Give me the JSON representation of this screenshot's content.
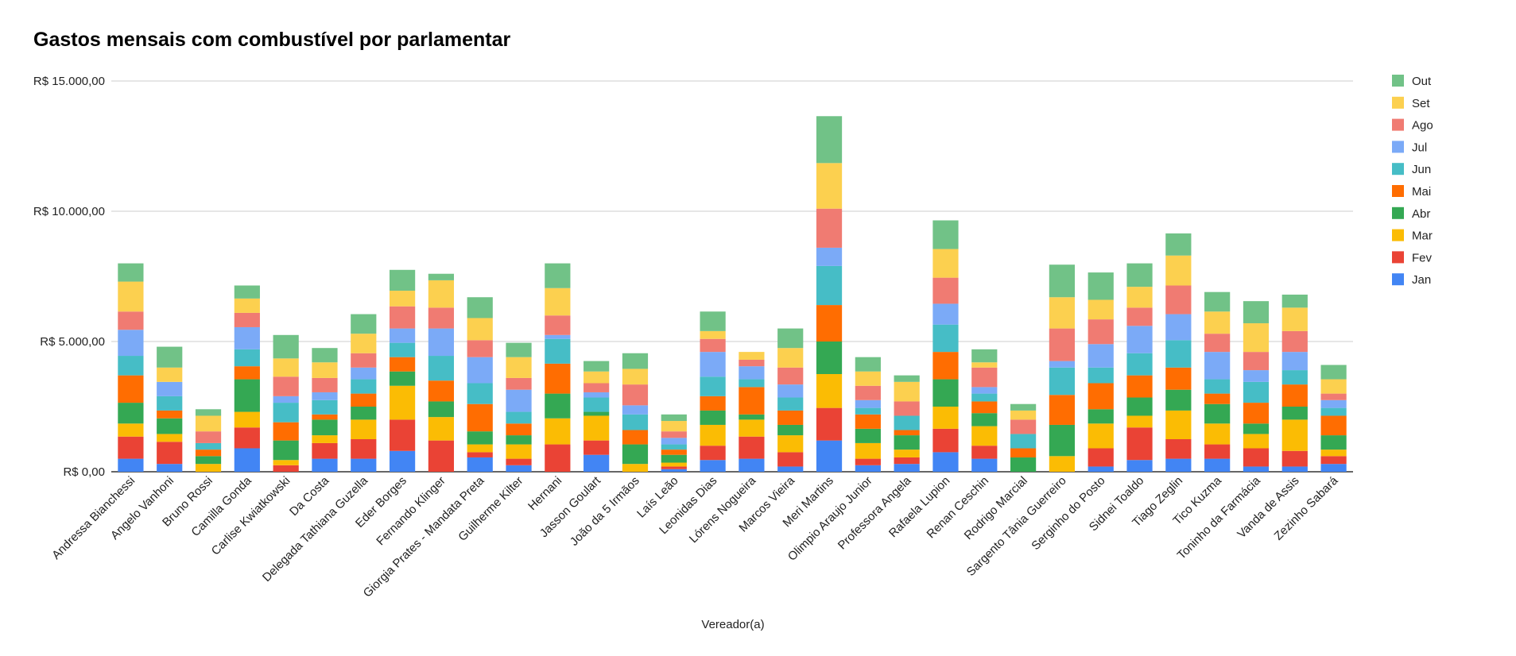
{
  "chart_data": {
    "type": "bar",
    "stacked": true,
    "title": "Gastos mensais com combustível por parlamentar",
    "xlabel": "Vereador(a)",
    "ylabel": "",
    "ylim": [
      0,
      15000
    ],
    "yticks": [
      {
        "value": 0,
        "label": "R$ 0,00"
      },
      {
        "value": 5000,
        "label": "R$ 5.000,00"
      },
      {
        "value": 10000,
        "label": "R$ 10.000,00"
      },
      {
        "value": 15000,
        "label": "R$ 15.000,00"
      }
    ],
    "grid": true,
    "legend_position": "right",
    "categories": [
      "Andressa Bianchessi",
      "Angelo Vanhoni",
      "Bruno Rossi",
      "Camilla Gonda",
      "Carlise Kwiatkowski",
      "Da Costa",
      "Delegada Tathiana Guzella",
      "Eder Borges",
      "Fernando Klinger",
      "Giorgia Prates - Mandata Preta",
      "Guilherme Kilter",
      "Hernani",
      "Jasson Goulart",
      "João da 5 Irmãos",
      "Laís Leão",
      "Leonidas Dias",
      "Lórens Nogueira",
      "Marcos Vieira",
      "Meri Martins",
      "Olimpio Araujo Junior",
      "Professora Angela",
      "Rafaela Lupion",
      "Renan Ceschin",
      "Rodrigo Marcial",
      "Sargento Tânia Guerreiro",
      "Serginho do Posto",
      "Sidnei Toaldo",
      "Tiago Zeglin",
      "Tico Kuzma",
      "Toninho da Farmácia",
      "Vanda de Assis",
      "Zezinho Sabará"
    ],
    "series": [
      {
        "name": "Jan",
        "color": "#4285F4",
        "values": [
          500,
          300,
          0,
          900,
          0,
          500,
          500,
          800,
          0,
          550,
          250,
          0,
          650,
          0,
          100,
          450,
          500,
          200,
          1200,
          250,
          300,
          750,
          500,
          0,
          0,
          200,
          450,
          500,
          500,
          200,
          200,
          300
        ]
      },
      {
        "name": "Fev",
        "color": "#EA4335",
        "values": [
          850,
          850,
          0,
          800,
          250,
          600,
          750,
          1200,
          1200,
          200,
          250,
          1050,
          550,
          0,
          100,
          550,
          850,
          550,
          1250,
          250,
          250,
          900,
          500,
          0,
          0,
          700,
          1250,
          750,
          550,
          700,
          600,
          300
        ]
      },
      {
        "name": "Mar",
        "color": "#FBBC04",
        "values": [
          500,
          300,
          300,
          600,
          200,
          300,
          750,
          1300,
          900,
          300,
          550,
          1000,
          950,
          300,
          150,
          800,
          650,
          650,
          1300,
          600,
          300,
          850,
          750,
          0,
          600,
          950,
          450,
          1100,
          800,
          550,
          1200,
          250
        ]
      },
      {
        "name": "Abr",
        "color": "#34A853",
        "values": [
          800,
          600,
          300,
          1250,
          750,
          600,
          500,
          550,
          600,
          500,
          350,
          950,
          150,
          750,
          300,
          550,
          200,
          400,
          1250,
          550,
          550,
          1050,
          500,
          550,
          1200,
          550,
          700,
          800,
          750,
          400,
          500,
          550
        ]
      },
      {
        "name": "Mai",
        "color": "#FF6D01",
        "values": [
          1050,
          300,
          250,
          500,
          700,
          200,
          500,
          550,
          800,
          1050,
          450,
          1150,
          0,
          550,
          200,
          550,
          1050,
          550,
          1400,
          550,
          200,
          1050,
          450,
          350,
          1150,
          1000,
          850,
          850,
          400,
          800,
          850,
          750
        ]
      },
      {
        "name": "Jun",
        "color": "#46BDC6",
        "values": [
          750,
          550,
          250,
          650,
          750,
          550,
          550,
          550,
          950,
          800,
          450,
          950,
          550,
          600,
          200,
          750,
          300,
          500,
          1500,
          250,
          550,
          1050,
          300,
          550,
          1050,
          600,
          850,
          1050,
          550,
          800,
          550,
          300
        ]
      },
      {
        "name": "Jul",
        "color": "#7BAAF7",
        "values": [
          1000,
          550,
          0,
          850,
          250,
          300,
          450,
          550,
          1050,
          1000,
          850,
          150,
          200,
          350,
          250,
          950,
          500,
          500,
          700,
          300,
          0,
          800,
          250,
          0,
          250,
          900,
          1050,
          1000,
          1050,
          450,
          700,
          300
        ]
      },
      {
        "name": "Ago",
        "color": "#F07B72",
        "values": [
          700,
          0,
          450,
          550,
          750,
          550,
          550,
          850,
          800,
          650,
          450,
          750,
          350,
          800,
          250,
          500,
          250,
          650,
          1500,
          550,
          550,
          1000,
          750,
          550,
          1250,
          950,
          700,
          1100,
          700,
          700,
          800,
          250
        ]
      },
      {
        "name": "Set",
        "color": "#FCD04F",
        "values": [
          1150,
          550,
          600,
          550,
          700,
          600,
          750,
          600,
          1050,
          850,
          800,
          1050,
          450,
          600,
          400,
          300,
          300,
          750,
          1750,
          550,
          750,
          1100,
          200,
          350,
          1200,
          750,
          800,
          1150,
          850,
          1100,
          900,
          550
        ]
      },
      {
        "name": "Out",
        "color": "#71C287",
        "values": [
          700,
          800,
          250,
          500,
          900,
          550,
          750,
          800,
          250,
          800,
          550,
          950,
          400,
          600,
          250,
          750,
          0,
          750,
          1800,
          550,
          250,
          1100,
          500,
          250,
          1250,
          1050,
          900,
          850,
          750,
          850,
          500,
          550
        ]
      }
    ]
  }
}
